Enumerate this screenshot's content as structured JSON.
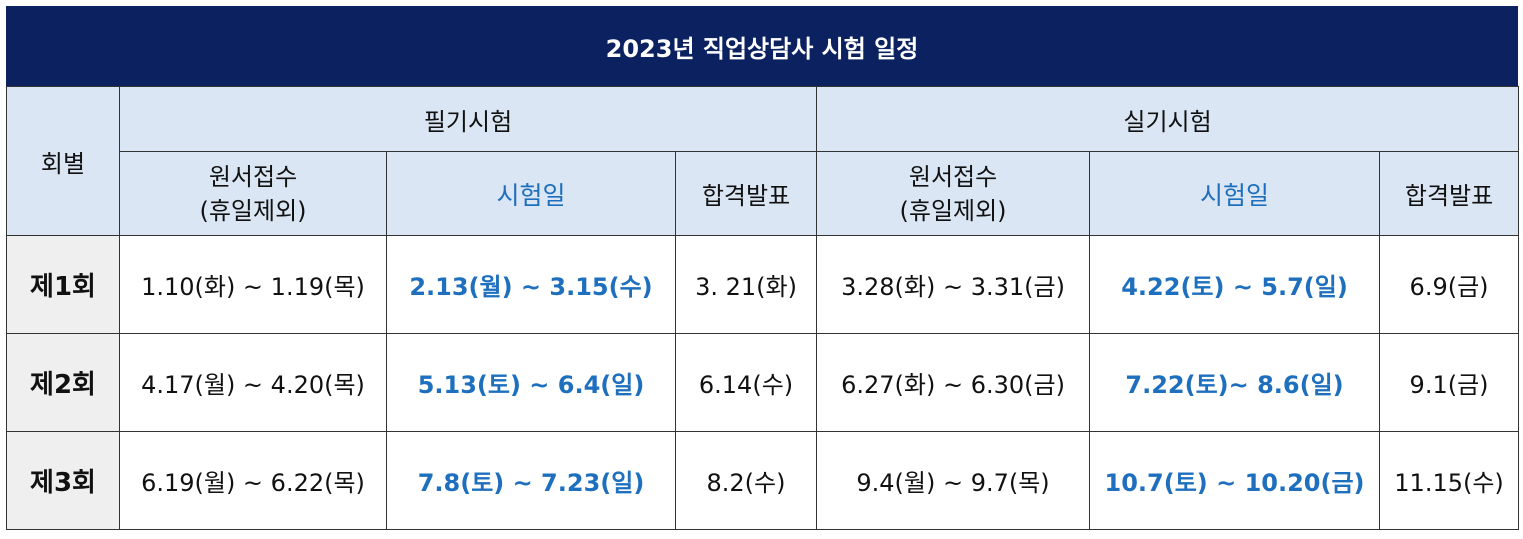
{
  "title": "2023년 직업상담사 시험 일정",
  "header": {
    "round": "회별",
    "written": "필기시험",
    "practical": "실기시험",
    "application_line1": "원서접수",
    "application_line2": "(휴일제외)",
    "exam_day": "시험일",
    "result": "합격발표"
  },
  "rows": [
    {
      "round": "제1회",
      "w_apply": "1.10(화)  ~  1.19(목)",
      "w_exam": "2.13(월)  ~  3.15(수)",
      "w_result": "3.  21(화)",
      "p_apply": "3.28(화)  ~  3.31(금)",
      "p_exam": "4.22(토)  ~  5.7(일)",
      "p_result": "6.9(금)"
    },
    {
      "round": "제2회",
      "w_apply": "4.17(월)  ~  4.20(목)",
      "w_exam": "5.13(토)  ~  6.4(일)",
      "w_result": "6.14(수)",
      "p_apply": "6.27(화)  ~  6.30(금)",
      "p_exam": "7.22(토)~  8.6(일)",
      "p_result": "9.1(금)"
    },
    {
      "round": "제3회",
      "w_apply": "6.19(월)  ~  6.22(목)",
      "w_exam": "7.8(토)  ~  7.23(일)",
      "w_result": "8.2(수)",
      "p_apply": "9.4(월)  ~  9.7(목)",
      "p_exam": "10.7(토)  ~  10.20(금)",
      "p_result": "11.15(수)"
    }
  ],
  "colors": {
    "title_bg": "#0b2160",
    "header_bg": "#dbe6f4",
    "exam_text": "#1e6fbe",
    "round_bg": "#efefef"
  }
}
